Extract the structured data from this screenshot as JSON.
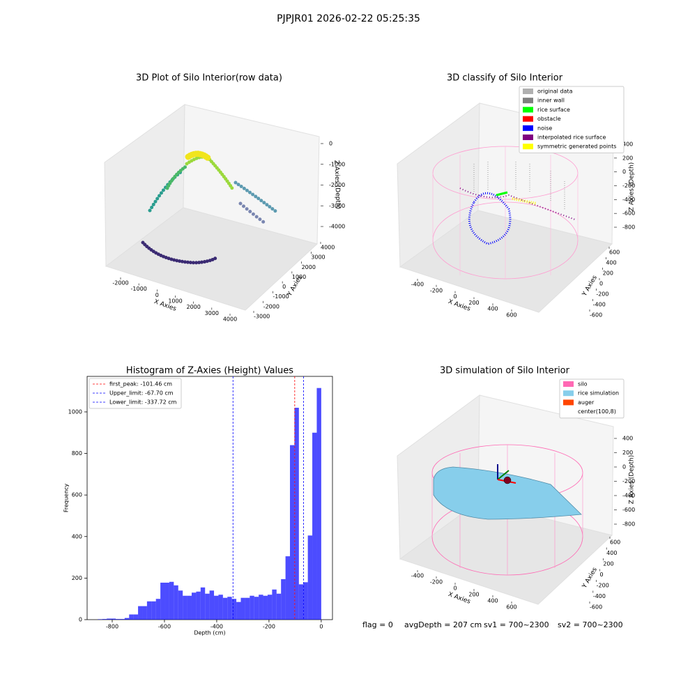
{
  "title": "PJPJR01 2026-02-22 05:25:35",
  "chart_data": [
    {
      "type": "scatter3d",
      "title": "3D Plot of Silo Interior(row data)",
      "xlabel": "X Axies",
      "ylabel": "Y Axies",
      "zlabel": "Z Axies (Depth)",
      "xlim": [
        -2000,
        4000
      ],
      "xticks": [
        -2000,
        -1000,
        0,
        1000,
        2000,
        3000,
        4000
      ],
      "ylim": [
        -3000,
        4000
      ],
      "yticks": [
        -3000,
        -2000,
        -1000,
        0,
        1000,
        2000,
        3000,
        4000
      ],
      "zlim": [
        0,
        -4000
      ],
      "zticks": [
        0,
        -1000,
        -2000,
        -3000,
        -4000
      ]
    },
    {
      "type": "scatter3d",
      "title": "3D classify of Silo Interior",
      "xlabel": "X Axies",
      "ylabel": "Y Axies",
      "zlabel": "Z Axies (Depth)",
      "xlim": [
        -400,
        600
      ],
      "xticks": [
        -400,
        -200,
        0,
        200,
        400,
        600
      ],
      "ylim": [
        -600,
        600
      ],
      "yticks": [
        -600,
        -400,
        -200,
        0,
        200,
        400,
        600
      ],
      "zlim": [
        400,
        -800
      ],
      "zticks": [
        400,
        200,
        0,
        -200,
        -400,
        -600,
        -800
      ],
      "series": [
        {
          "name": "original data",
          "color": "#b0b0b0"
        },
        {
          "name": "inner wall",
          "color": "#808080"
        },
        {
          "name": "rice surface",
          "color": "#00ff00"
        },
        {
          "name": "obstacle",
          "color": "#ff0000"
        },
        {
          "name": "noise",
          "color": "#0000ff"
        },
        {
          "name": "interpolated rice surface",
          "color": "#800080"
        },
        {
          "name": "symmetric generated points",
          "color": "#ffff00"
        }
      ]
    },
    {
      "type": "histogram",
      "title": "Histogram of Z-Axies (Height) Values",
      "xlabel": "Depth (cm)",
      "ylabel": "Frequency",
      "color": "#0000ff",
      "bins": [
        -855,
        -837.9,
        -820.8,
        -803.7,
        -786.6,
        -769.5,
        -752.4,
        -735.3,
        -718.2,
        -701.1,
        -684,
        -666.9,
        -649.8,
        -632.7,
        -615.6,
        -598.5,
        -581.4,
        -564.3,
        -547.2,
        -530.1,
        -513,
        -495.9,
        -478.8,
        -461.7,
        -444.6,
        -427.5,
        -410.4,
        -393.3,
        -376.2,
        -359.1,
        -342,
        -324.9,
        -307.8,
        -290.7,
        -273.6,
        -256.5,
        -239.4,
        -222.3,
        -205.2,
        -188.1,
        -171,
        -153.9,
        -136.8,
        -119.7,
        -102.6,
        -85.5,
        -68.4,
        -51.3,
        -34.2,
        -17.1,
        0
      ],
      "values": [
        2,
        3,
        5,
        5,
        3,
        3,
        8,
        25,
        25,
        65,
        65,
        88,
        88,
        100,
        178,
        178,
        182,
        165,
        140,
        115,
        115,
        130,
        135,
        155,
        125,
        140,
        115,
        120,
        105,
        110,
        100,
        85,
        105,
        105,
        115,
        110,
        120,
        115,
        120,
        145,
        125,
        195,
        305,
        840,
        1020,
        170,
        180,
        405,
        900,
        1115
      ],
      "xlim": [
        -896,
        43
      ],
      "xticks": [
        -800,
        -600,
        -400,
        -200,
        0
      ],
      "ylim": [
        0,
        1171
      ],
      "yticks": [
        0,
        200,
        400,
        600,
        800,
        1000
      ],
      "lines": [
        {
          "label": "first_peak: -101.46 cm",
          "value": -101.46,
          "color": "#ff0000"
        },
        {
          "label": "Upper_limit: -67.70 cm",
          "value": -67.7,
          "color": "#0000ff"
        },
        {
          "label": "Lower_limit: -337.72 cm",
          "value": -337.72,
          "color": "#0000ff"
        }
      ]
    },
    {
      "type": "surface3d",
      "title": "3D simulation of Silo Interior",
      "xlabel": "X Axies",
      "ylabel": "Y Axies",
      "zlabel": "Z Axies (Depth)",
      "xlim": [
        -400,
        600
      ],
      "xticks": [
        -400,
        -200,
        0,
        200,
        400,
        600
      ],
      "ylim": [
        -600,
        600
      ],
      "yticks": [
        -600,
        -400,
        -200,
        0,
        200,
        400,
        600
      ],
      "zlim": [
        400,
        -800
      ],
      "zticks": [
        400,
        200,
        0,
        -200,
        -400,
        -600,
        -800
      ],
      "series": [
        {
          "name": "silo",
          "color": "#ff69b4"
        },
        {
          "name": "rice simulation",
          "color": "#87ceeb"
        },
        {
          "name": "auger",
          "color": "#ff4500"
        },
        {
          "name": "center(100,8)",
          "color": "#ffffff"
        }
      ]
    }
  ],
  "footer": [
    "flag = 0",
    "avgDepth = 207 cm",
    "sv1 = 700~2300",
    "sv2 = 700~2300"
  ]
}
